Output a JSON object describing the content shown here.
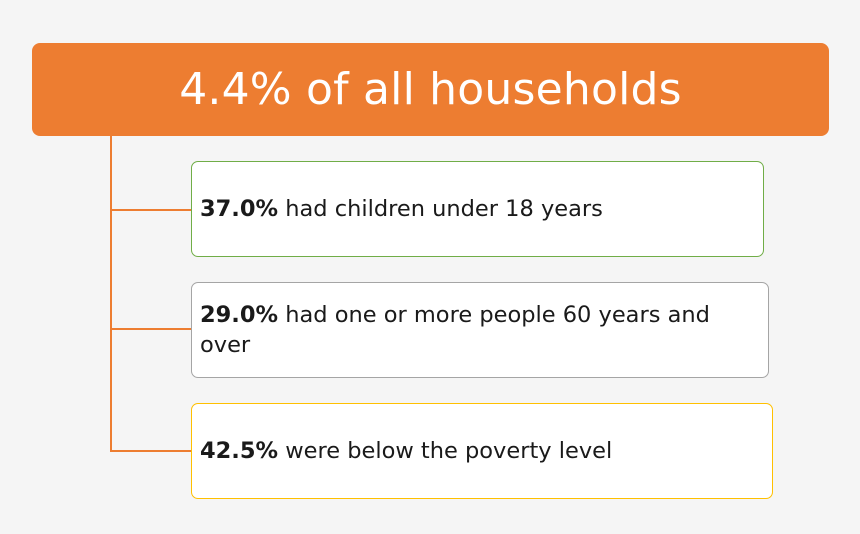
{
  "header": {
    "title": "4.4% of all households",
    "color": "#ed7d31"
  },
  "connector_color": "#ed7d31",
  "stats": [
    {
      "value": "37.0%",
      "text": " had children under 18 years",
      "border_color": "#70ad47"
    },
    {
      "value": "29.0%",
      "text": " had one or more people 60 years and over",
      "border_color": "#a5a5a5"
    },
    {
      "value": "42.5%",
      "text": " were below the poverty level",
      "border_color": "#ffc000"
    }
  ]
}
